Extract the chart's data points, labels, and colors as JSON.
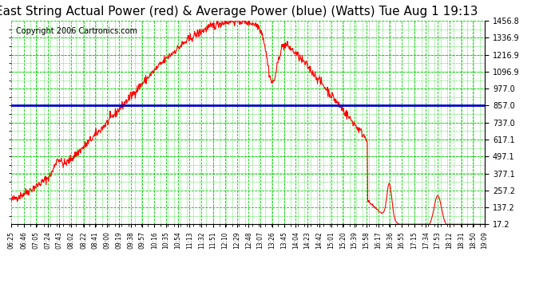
{
  "title": "East String Actual Power (red) & Average Power (blue) (Watts) Tue Aug 1 19:13",
  "copyright": "Copyright 2006 Cartronics.com",
  "average_power": 857.0,
  "yticks": [
    17.2,
    137.2,
    257.2,
    377.1,
    497.1,
    617.1,
    737.0,
    857.0,
    977.0,
    1096.9,
    1216.9,
    1336.9,
    1456.8
  ],
  "ylim": [
    17.2,
    1456.8
  ],
  "bg_color": "#ffffff",
  "plot_bg_color": "#ffffff",
  "grid_color": "#00cc00",
  "red_color": "#ff0000",
  "blue_color": "#0000cc",
  "title_fontsize": 11,
  "copyright_fontsize": 7
}
